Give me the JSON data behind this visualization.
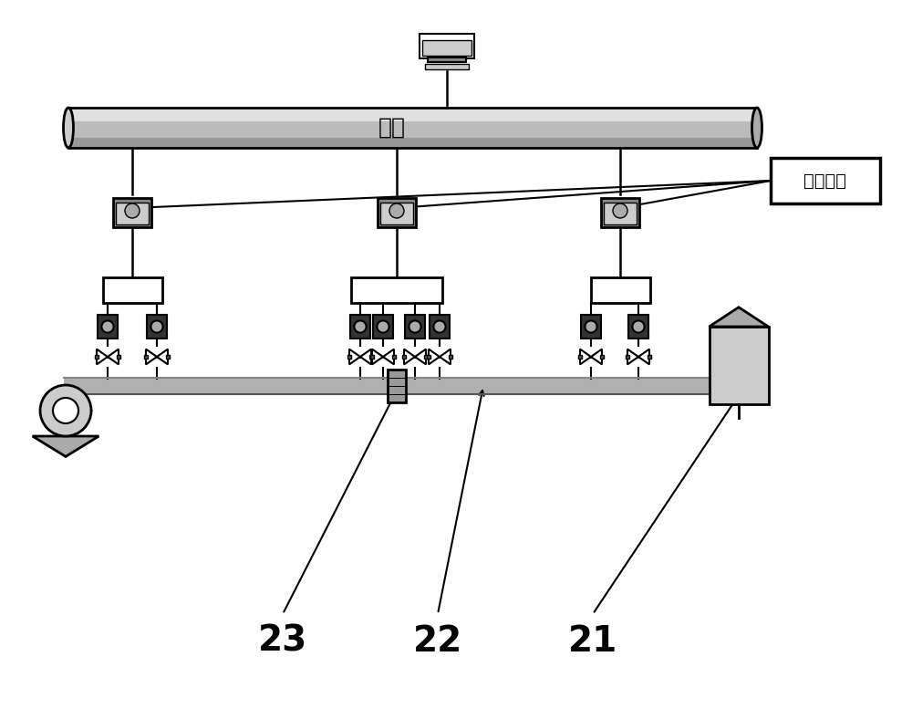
{
  "bg_color": "#ffffff",
  "network_tube_label": "网络",
  "timing_module_label": "校时模块",
  "label_21": "21",
  "label_22": "22",
  "label_23": "23",
  "line_color": "#000000",
  "pipe_color": "#aaaaaa",
  "pipe_dark": "#888888",
  "box_fill": "#cccccc",
  "box_dark": "#555555",
  "network_tube_gradient_top": "#dddddd",
  "network_tube_gradient_mid": "#ffffff",
  "network_tube_gradient_bot": "#aaaaaa"
}
